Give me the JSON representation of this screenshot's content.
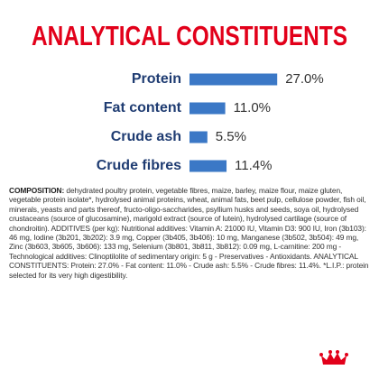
{
  "chart_data": {
    "type": "bar",
    "title": "ANALYTICAL CONSTITUENTS",
    "categories": [
      "Protein",
      "Fat content",
      "Crude ash",
      "Crude fibres"
    ],
    "values": [
      27.0,
      11.0,
      5.5,
      11.4
    ],
    "value_labels": [
      "27.0%",
      "11.0%",
      "5.5%",
      "11.4%"
    ],
    "color": "#3b78c6",
    "title_color": "#e2001a",
    "label_color": "#1f3c72"
  },
  "composition": {
    "label": "COMPOSITION:",
    "text": "dehydrated poultry protein, vegetable fibres, maize, barley, maize flour, maize gluten, vegetable protein isolate*, hydrolysed animal proteins, wheat, animal fats, beet pulp, cellulose powder, fish oil, minerals, yeasts and parts thereof, fructo-oligo-saccharides, psyllium husks and seeds, soya oil, hydrolysed crustaceans (source of glucosamine), marigold extract (source of lutein), hydrolysed cartilage (source of chondroitin). ADDITIVES (per kg): Nutritional additives: Vitamin A: 21000 IU, Vitamin D3: 900 IU, Iron (3b103): 46 mg, Iodine (3b201, 3b202): 3.9 mg, Copper (3b405, 3b406): 10 mg, Manganese (3b502, 3b504): 49 mg, Zinc (3b603, 3b605, 3b606): 133 mg, Selenium (3b801, 3b811, 3b812): 0.09 mg, L-carnitine: 200 mg - Technological additives: Clinoptilolite of sedimentary origin: 5 g - Preservatives - Antioxidants. ANALYTICAL CONSTITUENTS: Protein: 27.0% - Fat content: 11.0% - Crude ash: 5.5% - Crude fibres: 11.4%. *L.I.P.: protein selected for its very high digestibility."
  }
}
